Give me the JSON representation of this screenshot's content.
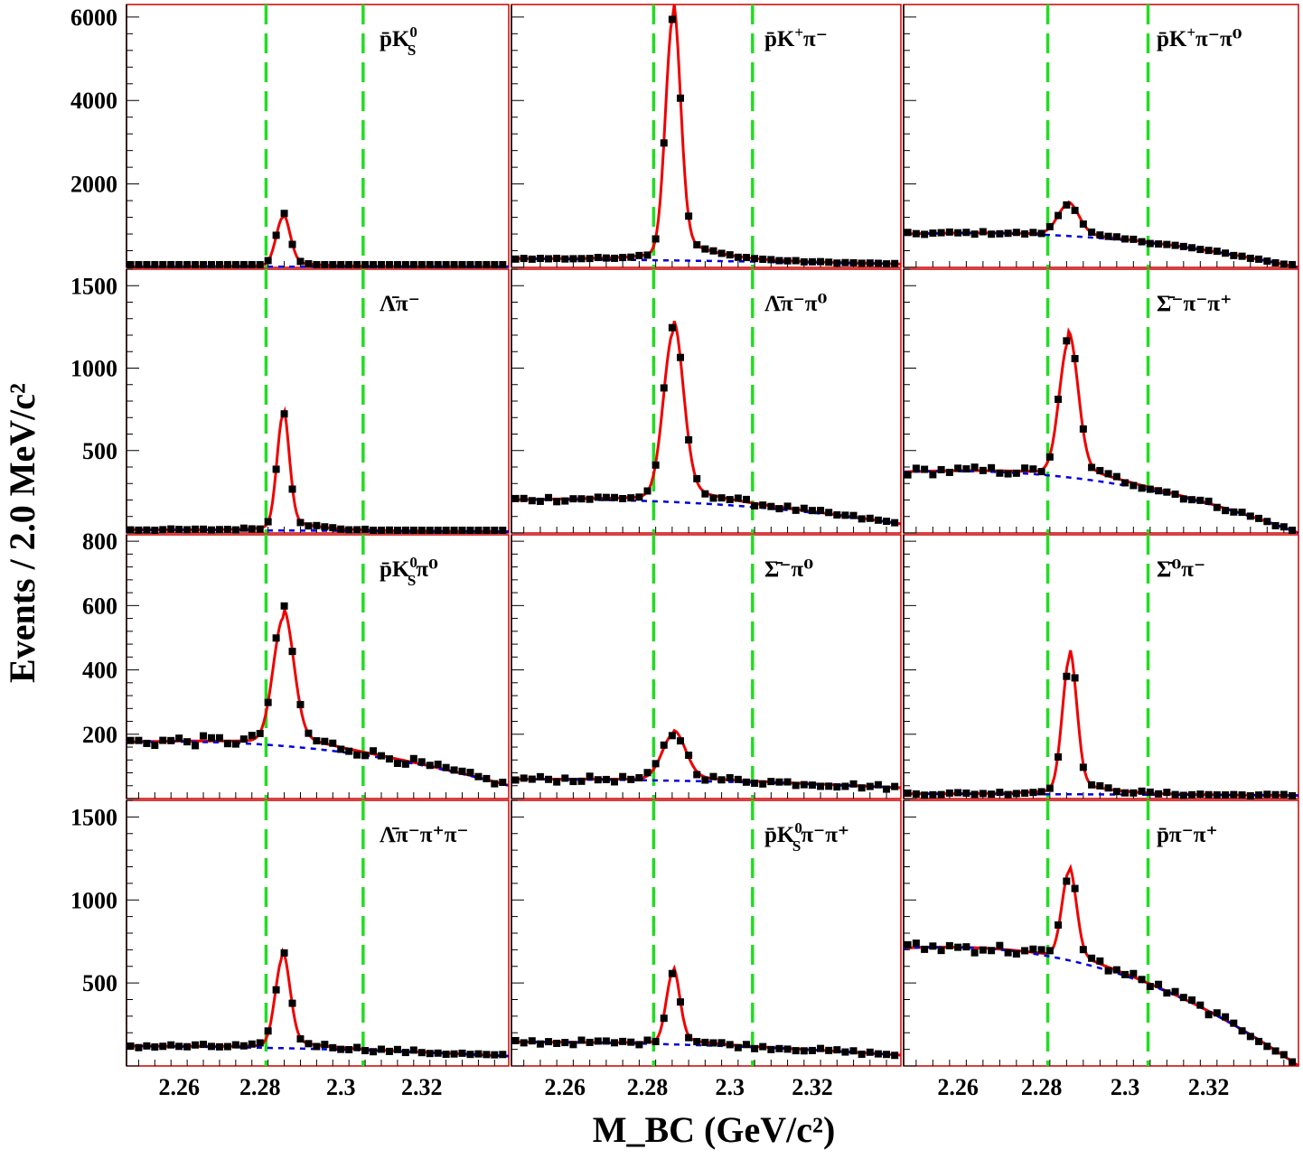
{
  "figure": {
    "y_axis_title": "Events / 2.0 MeV/c²",
    "x_axis_title": "M_BC (GeV/c²)"
  },
  "chart_data": {
    "type": "scatter",
    "xlabel": "M_BC (GeV/c²)",
    "ylabel": "Events / 2.0 MeV/c²",
    "xlim": [
      2.247,
      2.3415
    ],
    "x_ticks": [
      2.26,
      2.28,
      2.3,
      2.32
    ],
    "x_tick_labels": [
      "2.26",
      "2.28",
      "2.3",
      "2.32"
    ],
    "signal_window": [
      2.2815,
      2.3055
    ],
    "colors": {
      "data": "#000000",
      "total_fit": "#ee0000",
      "background": "#0000dd",
      "signal_window": "#22dd22",
      "frame": "#cc0000"
    },
    "rows": [
      {
        "ylim": [
          0,
          6300
        ],
        "ticks": [
          2000,
          4000,
          6000
        ],
        "tick_labels": [
          "2000",
          "4000",
          "6000"
        ]
      },
      {
        "ylim": [
          0,
          1600
        ],
        "ticks": [
          500,
          1000,
          1500
        ],
        "tick_labels": [
          "500",
          "1000",
          "1500"
        ]
      },
      {
        "ylim": [
          0,
          820
        ],
        "ticks": [
          200,
          400,
          600,
          800
        ],
        "tick_labels": [
          "200",
          "400",
          "600",
          "800"
        ]
      },
      {
        "ylim": [
          0,
          1600
        ],
        "ticks": [
          500,
          1000,
          1500
        ],
        "tick_labels": [
          "500",
          "1000",
          "1500"
        ]
      }
    ],
    "panels": [
      {
        "label_main": "p̄K",
        "label_sup": "0",
        "label_sub": "S",
        "label_rest": "",
        "row": 0,
        "col": 0,
        "peak": 1220,
        "mean": 2.2857,
        "sigma": 0.0017,
        "bg_start": 15,
        "bg_end": 15,
        "bg_mid_boost": 0.0,
        "endpoint_falloff": 0.0
      },
      {
        "label_main": "p̄K",
        "label_sup": "+",
        "label_sub": "",
        "label_rest": "π⁻",
        "row": 0,
        "col": 1,
        "peak": 6000,
        "mean": 2.2862,
        "sigma": 0.0018,
        "bg_start": 210,
        "bg_end": 40,
        "bg_mid_boost": 0.1,
        "endpoint_falloff": 0.4
      },
      {
        "label_main": "p̄K",
        "label_sup": "+",
        "label_sub": "",
        "label_rest": "π⁻π⁰",
        "row": 0,
        "col": 2,
        "peak": 780,
        "mean": 2.2864,
        "sigma": 0.0025,
        "bg_start": 800,
        "bg_end": 0,
        "bg_mid_boost": 0.3,
        "endpoint_falloff": 1.0
      },
      {
        "label_main": "Λ̄π⁻",
        "label_sup": "",
        "label_sub": "",
        "label_rest": "",
        "row": 1,
        "col": 0,
        "peak": 720,
        "mean": 2.2857,
        "sigma": 0.0015,
        "bg_start": 20,
        "bg_end": 8,
        "bg_mid_boost": 0.0,
        "endpoint_falloff": 0.0
      },
      {
        "label_main": "Λ̄π⁻π⁰",
        "label_sup": "",
        "label_sub": "",
        "label_rest": "",
        "row": 1,
        "col": 1,
        "peak": 1060,
        "mean": 2.2863,
        "sigma": 0.0024,
        "bg_start": 200,
        "bg_end": 40,
        "bg_mid_boost": 0.25,
        "endpoint_falloff": 0.9
      },
      {
        "label_main": "Σ̄⁻π⁻π⁺",
        "label_sup": "",
        "label_sub": "",
        "label_rest": "",
        "row": 1,
        "col": 2,
        "peak": 850,
        "mean": 2.2865,
        "sigma": 0.0022,
        "bg_start": 370,
        "bg_end": 0,
        "bg_mid_boost": 0.2,
        "endpoint_falloff": 1.0
      },
      {
        "label_main": "p̄K",
        "label_sup": "0",
        "label_sub": "S",
        "label_rest": "π⁰",
        "row": 2,
        "col": 0,
        "peak": 410,
        "mean": 2.2858,
        "sigma": 0.0025,
        "bg_start": 175,
        "bg_end": 40,
        "bg_mid_boost": 0.15,
        "endpoint_falloff": 1.0
      },
      {
        "label_main": "Σ̄⁻π⁰",
        "label_sup": "",
        "label_sub": "",
        "label_rest": "",
        "row": 2,
        "col": 1,
        "peak": 150,
        "mean": 2.2864,
        "sigma": 0.0028,
        "bg_start": 60,
        "bg_end": 25,
        "bg_mid_boost": 0.3,
        "endpoint_falloff": 0.6
      },
      {
        "label_main": "Σ̄⁰π⁻",
        "label_sup": "",
        "label_sub": "",
        "label_rest": "",
        "row": 2,
        "col": 2,
        "peak": 435,
        "mean": 2.2867,
        "sigma": 0.0017,
        "bg_start": 15,
        "bg_end": 8,
        "bg_mid_boost": 0.3,
        "endpoint_falloff": 0.3
      },
      {
        "label_main": "Λ̄π⁻π⁺π⁻",
        "label_sup": "",
        "label_sub": "",
        "label_rest": "",
        "row": 3,
        "col": 0,
        "peak": 560,
        "mean": 2.2856,
        "sigma": 0.0018,
        "bg_start": 120,
        "bg_end": 40,
        "bg_mid_boost": 0.2,
        "endpoint_falloff": 0.6
      },
      {
        "label_main": "p̄K",
        "label_sup": "0",
        "label_sub": "S",
        "label_rest": "π⁻π⁺",
        "row": 3,
        "col": 1,
        "peak": 450,
        "mean": 2.2862,
        "sigma": 0.0016,
        "bg_start": 145,
        "bg_end": 40,
        "bg_mid_boost": 0.3,
        "endpoint_falloff": 0.6
      },
      {
        "label_main": "p̄π⁻π⁺",
        "label_sup": "",
        "label_sub": "",
        "label_rest": "",
        "row": 3,
        "col": 2,
        "peak": 550,
        "mean": 2.2866,
        "sigma": 0.0017,
        "bg_start": 710,
        "bg_end": 0,
        "bg_mid_boost": 0.15,
        "endpoint_falloff": 1.0
      }
    ]
  }
}
